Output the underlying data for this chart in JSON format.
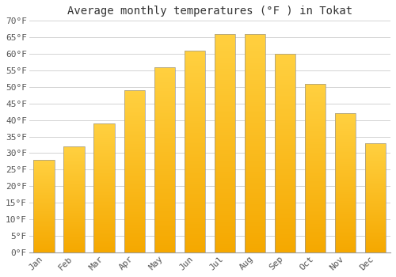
{
  "title": "Average monthly temperatures (°F ) in Tokat",
  "months": [
    "Jan",
    "Feb",
    "Mar",
    "Apr",
    "May",
    "Jun",
    "Jul",
    "Aug",
    "Sep",
    "Oct",
    "Nov",
    "Dec"
  ],
  "values": [
    28,
    32,
    39,
    49,
    56,
    61,
    66,
    66,
    60,
    51,
    42,
    33
  ],
  "bar_color_light": "#FFD040",
  "bar_color_dark": "#F5A800",
  "bar_edge_color": "#999999",
  "ylim": [
    0,
    70
  ],
  "yticks": [
    0,
    5,
    10,
    15,
    20,
    25,
    30,
    35,
    40,
    45,
    50,
    55,
    60,
    65,
    70
  ],
  "title_fontsize": 10,
  "tick_fontsize": 8,
  "grid_color": "#cccccc",
  "background_color": "#ffffff",
  "font_family": "monospace"
}
